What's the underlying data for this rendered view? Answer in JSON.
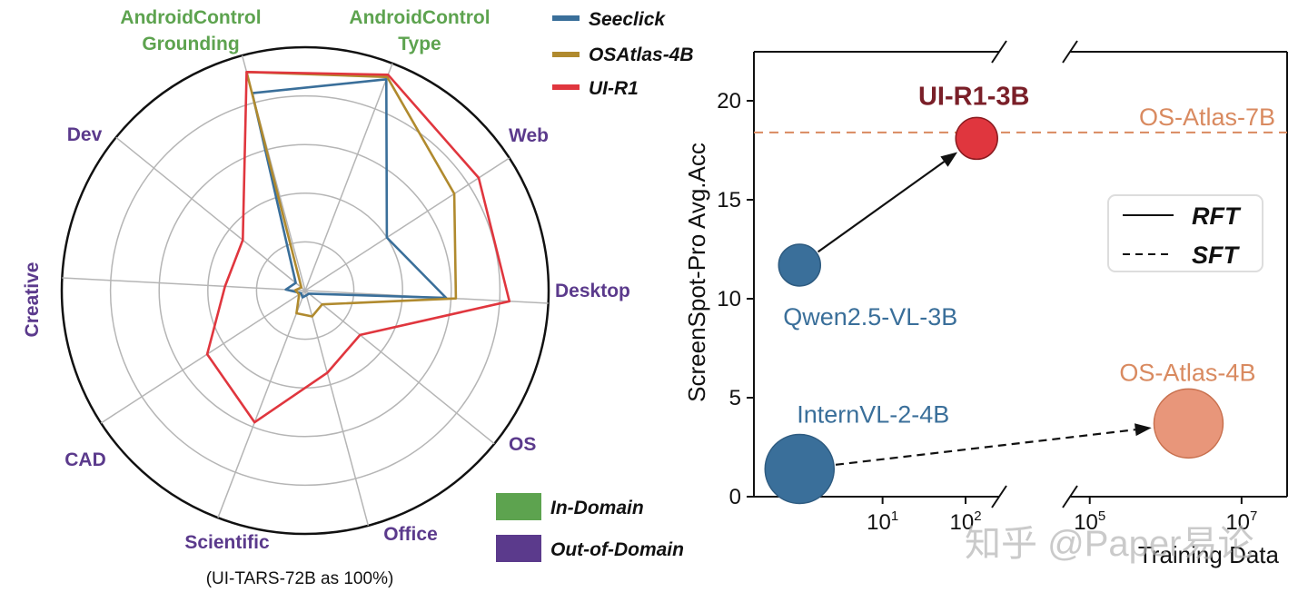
{
  "colors": {
    "seeclick": "#3a6f9a",
    "osatlas": "#b08a2e",
    "uir1": "#e0363e",
    "in_domain": "#5da34f",
    "out_domain": "#5b3a8c",
    "osatlas7b": "#d98a60"
  },
  "chart_data": [
    {
      "type": "radar",
      "title": "",
      "caption": "(UI-TARS-72B as 100%)",
      "range": [
        0,
        100
      ],
      "axes": [
        {
          "label": "AndroidControl Grounding",
          "lines": [
            "AndroidControl",
            "Grounding"
          ],
          "domain": "in"
        },
        {
          "label": "AndroidControl Type",
          "lines": [
            "AndroidControl",
            "Type"
          ],
          "domain": "in"
        },
        {
          "label": "Web",
          "lines": [
            "Web"
          ],
          "domain": "out"
        },
        {
          "label": "Desktop",
          "lines": [
            "Desktop"
          ],
          "domain": "out"
        },
        {
          "label": "OS",
          "lines": [
            "OS"
          ],
          "domain": "out"
        },
        {
          "label": "Office",
          "lines": [
            "Office"
          ],
          "domain": "out"
        },
        {
          "label": "Scientific",
          "lines": [
            "Scientific"
          ],
          "domain": "out"
        },
        {
          "label": "CAD",
          "lines": [
            "CAD"
          ],
          "domain": "out"
        },
        {
          "label": "Creative",
          "lines": [
            "Creative"
          ],
          "domain": "out"
        },
        {
          "label": "Dev",
          "lines": [
            "Dev"
          ],
          "domain": "out"
        }
      ],
      "series": [
        {
          "name": "Seeclick",
          "color": "#3a6f9a",
          "values": [
            84,
            93,
            40,
            58,
            2,
            2,
            3,
            2,
            8,
            5
          ]
        },
        {
          "name": "OSAtlas-4B",
          "color": "#b08a2e",
          "values": [
            93,
            94,
            73,
            62,
            9,
            11,
            10,
            3,
            4,
            2
          ]
        },
        {
          "name": "UI-R1",
          "color": "#e0363e",
          "values": [
            93,
            95,
            85,
            84,
            29,
            35,
            58,
            48,
            33,
            33
          ]
        }
      ],
      "legend": {
        "position": "top-right",
        "entries": [
          "Seeclick",
          "OSAtlas-4B",
          "UI-R1"
        ]
      },
      "domain_legend": [
        {
          "label": "In-Domain",
          "color": "#5da34f"
        },
        {
          "label": "Out-of-Domain",
          "color": "#5b3a8c"
        }
      ]
    },
    {
      "type": "scatter",
      "title": "",
      "xlabel": "Training Data",
      "ylabel": "ScreenSpot-Pro Avg.Acc",
      "xscale": "log (broken axis)",
      "ylim": [
        0,
        22
      ],
      "yticks": [
        0,
        5,
        10,
        15,
        20
      ],
      "xticks": [
        {
          "base": "10",
          "exp": "1"
        },
        {
          "base": "10",
          "exp": "2"
        },
        {
          "base": "10",
          "exp": "5"
        },
        {
          "base": "10",
          "exp": "7"
        }
      ],
      "points": [
        {
          "name": "Qwen2.5-VL-3B",
          "training_data": 1,
          "y": 11.7,
          "color": "#3a6f9a",
          "size": "small"
        },
        {
          "name": "UI-R1-3B",
          "training_data": 136,
          "y": 18.1,
          "color": "#e0363e",
          "size": "small"
        },
        {
          "name": "InternVL-2-4B",
          "training_data": 1,
          "y": 1.4,
          "color": "#3a6f9a",
          "size": "large"
        },
        {
          "name": "OS-Atlas-4B",
          "training_data": 2000000,
          "y": 3.7,
          "color": "#e8967a",
          "size": "large"
        }
      ],
      "reference_line": {
        "name": "OS-Atlas-7B",
        "y": 18.4,
        "style": "dashed",
        "color": "#d98a60"
      },
      "arrows": [
        {
          "from": "Qwen2.5-VL-3B",
          "to": "UI-R1-3B",
          "style": "solid"
        },
        {
          "from": "InternVL-2-4B",
          "to": "OS-Atlas-4B",
          "style": "dashed"
        }
      ],
      "legend": {
        "position": "right",
        "entries": [
          {
            "label": "RFT",
            "style": "solid"
          },
          {
            "label": "SFT",
            "style": "dashed"
          }
        ]
      }
    }
  ],
  "watermark": "知乎 @Paper易论"
}
